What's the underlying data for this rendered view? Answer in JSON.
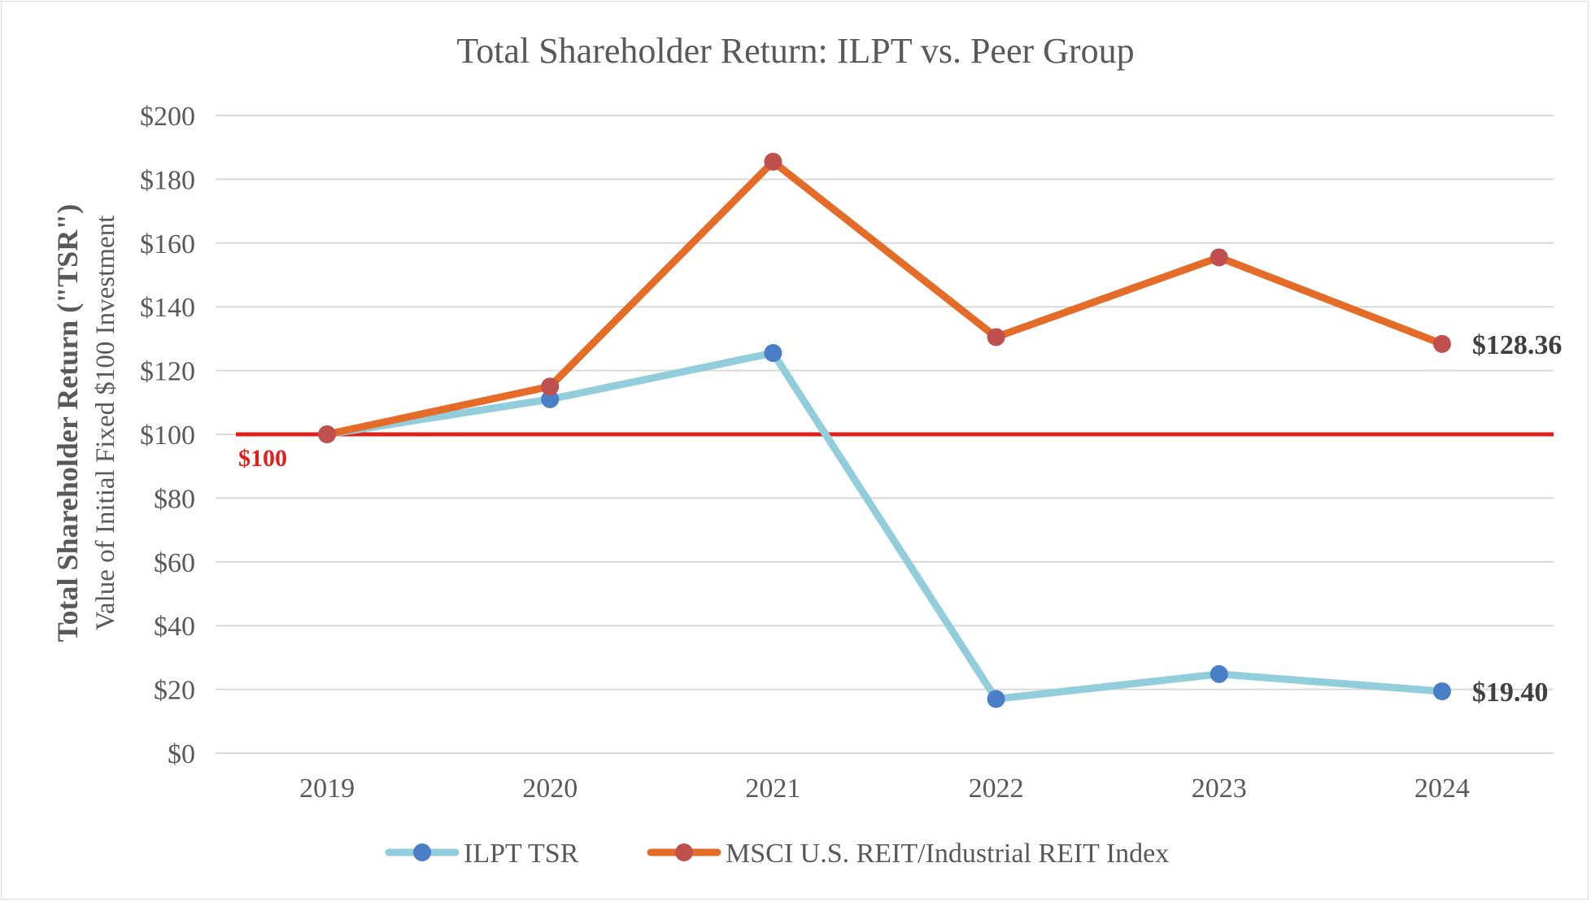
{
  "chart_data": {
    "type": "line",
    "title": "Total Shareholder Return: ILPT vs. Peer Group",
    "ylabel_primary": "Total Shareholder Return (\"TSR\")",
    "ylabel_secondary": "Value of Initial Fixed $100 Investment",
    "xlabel": "",
    "categories": [
      "2019",
      "2020",
      "2021",
      "2022",
      "2023",
      "2024"
    ],
    "ylim": [
      0,
      200
    ],
    "ytick_values": [
      0,
      20,
      40,
      60,
      80,
      100,
      120,
      140,
      160,
      180,
      200
    ],
    "ytick_labels": [
      "$0",
      "$20",
      "$40",
      "$60",
      "$80",
      "$100",
      "$120",
      "$140",
      "$160",
      "$180",
      "$200"
    ],
    "grid": true,
    "legend_position": "bottom",
    "reference_line": {
      "value": 100,
      "label": "$100",
      "color": "#e0201b"
    },
    "series": [
      {
        "name": "ILPT TSR",
        "values": [
          100,
          111,
          125.5,
          17,
          24.8,
          19.4
        ],
        "line_color": "#92cddc",
        "marker_color": "#4a7ec7",
        "end_label": "$19.40"
      },
      {
        "name": "MSCI U.S. REIT/Industrial REIT Index",
        "values": [
          100,
          115,
          185.5,
          130.5,
          155.5,
          128.36
        ],
        "line_color": "#e46c28",
        "marker_color": "#c0504d",
        "end_label": "$128.36"
      }
    ]
  }
}
